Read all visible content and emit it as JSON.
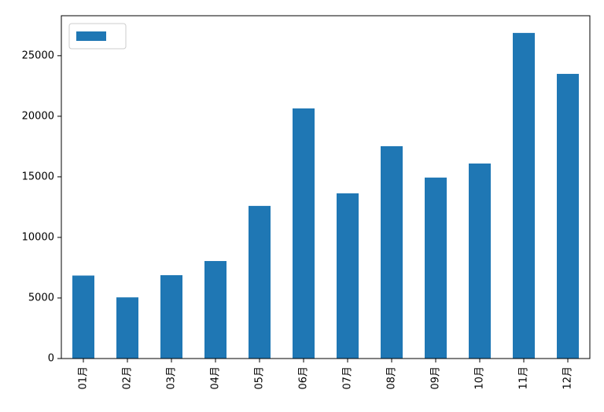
{
  "chart_data": {
    "type": "bar",
    "categories": [
      "01月",
      "02月",
      "03月",
      "04月",
      "05月",
      "06月",
      "07月",
      "08月",
      "09月",
      "10月",
      "11月",
      "12月"
    ],
    "values": [
      6850,
      5050,
      6880,
      8050,
      12600,
      20650,
      13640,
      17530,
      14940,
      16100,
      26880,
      23500
    ],
    "color": "#1f77b4",
    "ylim": [
      0,
      28300
    ],
    "yticks": [
      0,
      5000,
      10000,
      15000,
      20000,
      25000
    ],
    "grid": false,
    "legend": "upper left"
  }
}
